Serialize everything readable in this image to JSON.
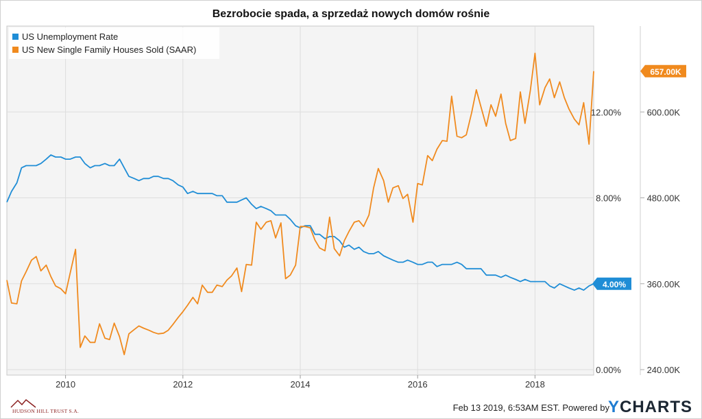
{
  "page": {
    "title": "Bezrobocie spada, a sprzedaż nowych domów rośnie",
    "timestamp": "Feb 13 2019, 6:53AM EST.",
    "powered_by": "Powered by",
    "brand_y": "Y",
    "brand_rest": "CHARTS",
    "logo_text": "HUDSON HILL TRUST S.A."
  },
  "chart_data": {
    "type": "line",
    "title": "Bezrobocie spada, a sprzedaż nowych domów rośnie",
    "grid": true,
    "legend_placement": "top-left",
    "x_ticks": [
      "2010",
      "2012",
      "2014",
      "2016",
      "2018"
    ],
    "left_axis": {
      "label": "",
      "ticks": [
        "0.00%",
        "4.00%",
        "8.00%",
        "12.00%"
      ],
      "range": [
        0,
        16
      ]
    },
    "right_axis": {
      "label": "",
      "ticks": [
        "240.00K",
        "360.00K",
        "480.00K",
        "600.00K"
      ],
      "range": [
        240,
        720
      ]
    },
    "series": [
      {
        "name": "US Unemployment Rate",
        "axis": "left",
        "color": "#1f8dd6",
        "last_label": "4.00%",
        "x": [
          2009.0,
          2009.08,
          2009.17,
          2009.25,
          2009.33,
          2009.42,
          2009.5,
          2009.58,
          2009.67,
          2009.75,
          2009.83,
          2009.92,
          2010.0,
          2010.08,
          2010.17,
          2010.25,
          2010.33,
          2010.42,
          2010.5,
          2010.58,
          2010.67,
          2010.75,
          2010.83,
          2010.92,
          2011.0,
          2011.08,
          2011.17,
          2011.25,
          2011.33,
          2011.42,
          2011.5,
          2011.58,
          2011.67,
          2011.75,
          2011.83,
          2011.92,
          2012.0,
          2012.08,
          2012.17,
          2012.25,
          2012.33,
          2012.42,
          2012.5,
          2012.58,
          2012.67,
          2012.75,
          2012.83,
          2012.92,
          2013.0,
          2013.08,
          2013.17,
          2013.25,
          2013.33,
          2013.42,
          2013.5,
          2013.58,
          2013.67,
          2013.75,
          2013.83,
          2013.92,
          2014.0,
          2014.08,
          2014.17,
          2014.25,
          2014.33,
          2014.42,
          2014.5,
          2014.58,
          2014.67,
          2014.75,
          2014.83,
          2014.92,
          2015.0,
          2015.08,
          2015.17,
          2015.25,
          2015.33,
          2015.42,
          2015.5,
          2015.58,
          2015.67,
          2015.75,
          2015.83,
          2015.92,
          2016.0,
          2016.08,
          2016.17,
          2016.25,
          2016.33,
          2016.42,
          2016.5,
          2016.58,
          2016.67,
          2016.75,
          2016.83,
          2016.92,
          2017.0,
          2017.08,
          2017.17,
          2017.25,
          2017.33,
          2017.42,
          2017.5,
          2017.58,
          2017.67,
          2017.75,
          2017.83,
          2017.92,
          2018.0,
          2018.08,
          2018.17,
          2018.25,
          2018.33,
          2018.42,
          2018.5,
          2018.58,
          2018.67,
          2018.75,
          2018.83,
          2018.92,
          2019.0
        ],
        "y": [
          7.8,
          8.3,
          8.7,
          9.4,
          9.5,
          9.5,
          9.5,
          9.6,
          9.8,
          10.0,
          9.9,
          9.9,
          9.8,
          9.8,
          9.9,
          9.9,
          9.6,
          9.4,
          9.5,
          9.5,
          9.6,
          9.5,
          9.5,
          9.8,
          9.4,
          9.0,
          8.9,
          8.8,
          8.9,
          8.9,
          9.0,
          9.0,
          8.9,
          8.9,
          8.8,
          8.6,
          8.5,
          8.2,
          8.3,
          8.2,
          8.2,
          8.2,
          8.2,
          8.1,
          8.1,
          7.8,
          7.8,
          7.8,
          7.9,
          8.0,
          7.7,
          7.5,
          7.6,
          7.5,
          7.4,
          7.2,
          7.2,
          7.2,
          7.0,
          6.7,
          6.6,
          6.7,
          6.7,
          6.3,
          6.3,
          6.1,
          6.2,
          6.2,
          6.0,
          5.7,
          5.8,
          5.6,
          5.7,
          5.5,
          5.4,
          5.4,
          5.5,
          5.3,
          5.2,
          5.1,
          5.0,
          5.0,
          5.1,
          5.0,
          4.9,
          4.9,
          5.0,
          5.0,
          4.8,
          4.9,
          4.9,
          4.9,
          5.0,
          4.9,
          4.7,
          4.7,
          4.7,
          4.7,
          4.4,
          4.4,
          4.4,
          4.3,
          4.4,
          4.3,
          4.2,
          4.1,
          4.2,
          4.1,
          4.1,
          4.1,
          4.1,
          3.9,
          3.8,
          4.0,
          3.9,
          3.8,
          3.7,
          3.8,
          3.7,
          3.9,
          4.0
        ]
      },
      {
        "name": "US New Single Family Houses Sold (SAAR)",
        "axis": "right",
        "color": "#f08a1e",
        "last_label": "657.00K",
        "x": [
          2009.0,
          2009.08,
          2009.17,
          2009.25,
          2009.33,
          2009.42,
          2009.5,
          2009.58,
          2009.67,
          2009.75,
          2009.83,
          2009.92,
          2010.0,
          2010.08,
          2010.17,
          2010.25,
          2010.33,
          2010.42,
          2010.5,
          2010.58,
          2010.67,
          2010.75,
          2010.83,
          2010.92,
          2011.0,
          2011.08,
          2011.17,
          2011.25,
          2011.33,
          2011.42,
          2011.5,
          2011.58,
          2011.67,
          2011.75,
          2011.83,
          2011.92,
          2012.0,
          2012.08,
          2012.17,
          2012.25,
          2012.33,
          2012.42,
          2012.5,
          2012.58,
          2012.67,
          2012.75,
          2012.83,
          2012.92,
          2013.0,
          2013.08,
          2013.17,
          2013.25,
          2013.33,
          2013.42,
          2013.5,
          2013.58,
          2013.67,
          2013.75,
          2013.83,
          2013.92,
          2014.0,
          2014.08,
          2014.17,
          2014.25,
          2014.33,
          2014.42,
          2014.5,
          2014.58,
          2014.67,
          2014.75,
          2014.83,
          2014.92,
          2015.0,
          2015.08,
          2015.17,
          2015.25,
          2015.33,
          2015.42,
          2015.5,
          2015.58,
          2015.67,
          2015.75,
          2015.83,
          2015.92,
          2016.0,
          2016.08,
          2016.17,
          2016.25,
          2016.33,
          2016.42,
          2016.5,
          2016.58,
          2016.67,
          2016.75,
          2016.83,
          2016.92,
          2017.0,
          2017.08,
          2017.17,
          2017.25,
          2017.33,
          2017.42,
          2017.5,
          2017.58,
          2017.67,
          2017.75,
          2017.83,
          2017.92,
          2018.0,
          2018.08,
          2018.17,
          2018.25,
          2018.33,
          2018.42,
          2018.5,
          2018.58,
          2018.67,
          2018.75,
          2018.83,
          2018.92,
          2019.0
        ],
        "y": [
          365,
          333,
          332,
          364,
          377,
          393,
          398,
          378,
          386,
          370,
          357,
          353,
          346,
          375,
          408,
          271,
          287,
          278,
          278,
          304,
          284,
          282,
          305,
          286,
          261,
          290,
          296,
          301,
          298,
          295,
          292,
          290,
          291,
          295,
          303,
          313,
          321,
          330,
          341,
          332,
          358,
          348,
          348,
          358,
          356,
          365,
          371,
          382,
          349,
          387,
          386,
          446,
          436,
          446,
          448,
          424,
          445,
          367,
          372,
          386,
          440,
          440,
          438,
          421,
          410,
          406,
          453,
          409,
          399,
          420,
          433,
          446,
          448,
          440,
          456,
          494,
          521,
          504,
          474,
          494,
          497,
          479,
          485,
          446,
          500,
          498,
          539,
          532,
          548,
          560,
          559,
          622,
          566,
          564,
          568,
          599,
          631,
          607,
          580,
          610,
          594,
          625,
          584,
          560,
          563,
          628,
          584,
          630,
          682,
          610,
          634,
          646,
          620,
          642,
          620,
          604,
          590,
          582,
          613,
          555,
          657
        ]
      }
    ]
  }
}
